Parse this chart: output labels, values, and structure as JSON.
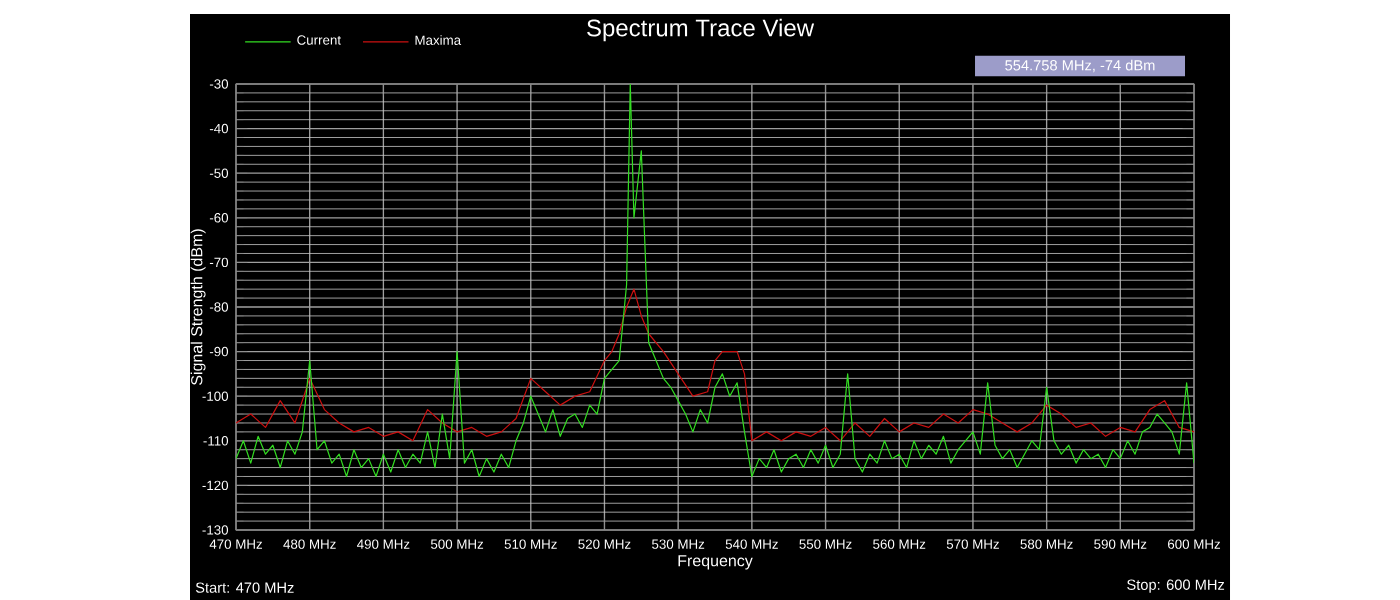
{
  "chart_data": {
    "type": "line",
    "title": "Spectrum Trace View",
    "xlabel": "Frequency",
    "ylabel": "Signal Strength (dBm)",
    "annotations": [
      "554.758 MHz,  -74 dBm",
      "Start: 470 MHz",
      "Stop: 600 MHz"
    ],
    "xlim": [
      470,
      600
    ],
    "ylim": [
      -130,
      -30
    ],
    "xticks": [
      {
        "value": 470,
        "label": "470 MHz"
      },
      {
        "value": 480,
        "label": "480 MHz"
      },
      {
        "value": 490,
        "label": "490 MHz"
      },
      {
        "value": 500,
        "label": "500 MHz"
      },
      {
        "value": 510,
        "label": "510 MHz"
      },
      {
        "value": 520,
        "label": "520 MHz"
      },
      {
        "value": 530,
        "label": "530 MHz"
      },
      {
        "value": 540,
        "label": "540 MHz"
      },
      {
        "value": 550,
        "label": "550 MHz"
      },
      {
        "value": 560,
        "label": "560 MHz"
      },
      {
        "value": 570,
        "label": "570 MHz"
      },
      {
        "value": 580,
        "label": "580 MHz"
      },
      {
        "value": 590,
        "label": "590 MHz"
      },
      {
        "value": 600,
        "label": "600 MHz"
      }
    ],
    "yticks": [
      -130,
      -120,
      -110,
      -100,
      -90,
      -80,
      -70,
      -60,
      -50,
      -40,
      -30
    ],
    "grid": true,
    "legend": "top left",
    "series": [
      {
        "name": "Current",
        "color": "#33dd22",
        "x": [
          470,
          471,
          472,
          473,
          474,
          475,
          476,
          477,
          478,
          479,
          480,
          481,
          482,
          483,
          484,
          485,
          486,
          487,
          488,
          489,
          490,
          491,
          492,
          493,
          494,
          495,
          496,
          497,
          498,
          499,
          500,
          501,
          502,
          503,
          504,
          505,
          506,
          507,
          508,
          509,
          510,
          511,
          512,
          513,
          514,
          515,
          516,
          517,
          518,
          519,
          520,
          521,
          522,
          523,
          523.5,
          524,
          525,
          526,
          527,
          528,
          529,
          530,
          531,
          532,
          533,
          534,
          535,
          536,
          537,
          538,
          539,
          540,
          541,
          542,
          543,
          544,
          545,
          546,
          547,
          548,
          549,
          550,
          551,
          552,
          553,
          554,
          555,
          556,
          557,
          558,
          559,
          560,
          561,
          562,
          563,
          564,
          565,
          566,
          567,
          568,
          569,
          570,
          571,
          572,
          573,
          574,
          575,
          576,
          577,
          578,
          579,
          580,
          581,
          582,
          583,
          584,
          585,
          586,
          587,
          588,
          589,
          590,
          591,
          592,
          593,
          594,
          595,
          596,
          597,
          598,
          599,
          600
        ],
        "values": [
          -114,
          -110,
          -115,
          -109,
          -113,
          -111,
          -116,
          -110,
          -113,
          -108,
          -92,
          -112,
          -110,
          -115,
          -113,
          -118,
          -112,
          -116,
          -114,
          -118,
          -113,
          -117,
          -112,
          -116,
          -113,
          -115,
          -108,
          -116,
          -104,
          -114,
          -90,
          -115,
          -112,
          -118,
          -114,
          -117,
          -113,
          -116,
          -110,
          -106,
          -100,
          -104,
          -108,
          -103,
          -109,
          -105,
          -104,
          -107,
          -102,
          -104,
          -96,
          -94,
          -92,
          -75,
          -30,
          -60,
          -45,
          -88,
          -92,
          -96,
          -98,
          -101,
          -104,
          -108,
          -103,
          -106,
          -98,
          -95,
          -100,
          -97,
          -108,
          -118,
          -114,
          -116,
          -112,
          -117,
          -114,
          -113,
          -116,
          -112,
          -115,
          -111,
          -116,
          -113,
          -95,
          -114,
          -117,
          -113,
          -115,
          -110,
          -114,
          -113,
          -116,
          -110,
          -114,
          -111,
          -113,
          -109,
          -115,
          -112,
          -110,
          -108,
          -113,
          -97,
          -111,
          -114,
          -112,
          -116,
          -113,
          -110,
          -112,
          -98,
          -110,
          -113,
          -111,
          -115,
          -112,
          -114,
          -113,
          -116,
          -112,
          -114,
          -110,
          -113,
          -108,
          -107,
          -104,
          -106,
          -108,
          -113,
          -97,
          -115
        ]
      },
      {
        "name": "Maxima",
        "color": "#cc1010",
        "x": [
          470,
          472,
          474,
          476,
          478,
          480,
          482,
          484,
          486,
          488,
          490,
          492,
          494,
          496,
          498,
          500,
          502,
          504,
          506,
          508,
          510,
          512,
          514,
          516,
          518,
          520,
          521,
          522,
          523,
          524,
          525,
          526,
          528,
          530,
          532,
          534,
          535,
          536,
          538,
          539,
          540,
          542,
          544,
          546,
          548,
          550,
          552,
          554,
          556,
          558,
          560,
          562,
          564,
          566,
          568,
          570,
          572,
          574,
          576,
          578,
          580,
          582,
          584,
          586,
          588,
          590,
          592,
          594,
          596,
          598,
          600
        ],
        "values": [
          -106,
          -104,
          -107,
          -101,
          -106,
          -96,
          -103,
          -106,
          -108,
          -107,
          -109,
          -108,
          -110,
          -103,
          -106,
          -108,
          -107,
          -109,
          -108,
          -105,
          -96,
          -99,
          -102,
          -100,
          -99,
          -92,
          -90,
          -86,
          -80,
          -76,
          -82,
          -86,
          -90,
          -95,
          -100,
          -99,
          -92,
          -90,
          -90,
          -95,
          -110,
          -108,
          -110,
          -108,
          -109,
          -107,
          -110,
          -106,
          -109,
          -105,
          -108,
          -106,
          -107,
          -104,
          -106,
          -103,
          -104,
          -106,
          -108,
          -106,
          -102,
          -104,
          -107,
          -106,
          -109,
          -107,
          -108,
          -103,
          -101,
          -107,
          -108
        ]
      }
    ]
  }
}
